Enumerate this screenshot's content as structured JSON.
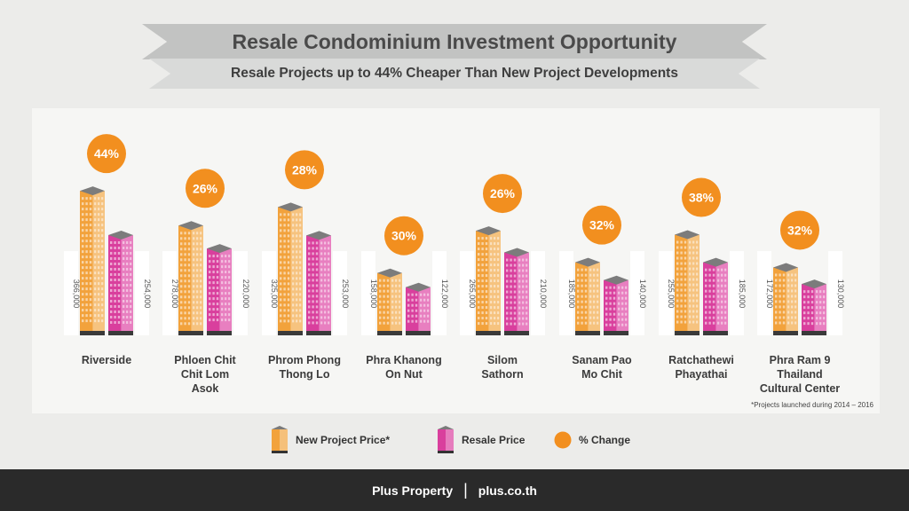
{
  "header": {
    "title": "Resale Condominium Investment Opportunity",
    "subtitle": "Resale Projects up to 44% Cheaper Than New Project Developments"
  },
  "chart_data": {
    "type": "bar",
    "categories": [
      [
        "Riverside"
      ],
      [
        "Phloen Chit",
        "Chit Lom",
        "Asok"
      ],
      [
        "Phrom Phong",
        "Thong Lo"
      ],
      [
        "Phra Khanong",
        "On Nut"
      ],
      [
        "Silom",
        "Sathorn"
      ],
      [
        "Sanam Pao",
        "Mo Chit"
      ],
      [
        "Ratchathewi",
        "Phayathai"
      ],
      [
        "Phra Ram 9",
        "Thailand",
        "Cultural Center"
      ]
    ],
    "series": [
      {
        "name": "New Project Price*",
        "values": [
          366000,
          278000,
          325000,
          158000,
          265000,
          185000,
          255000,
          172000
        ],
        "labels": [
          "366,000",
          "278,000",
          "325,000",
          "158,000",
          "265,000",
          "185,000",
          "255,000",
          "172,000"
        ],
        "color": "#f2a23c"
      },
      {
        "name": "Resale Price",
        "values": [
          254000,
          220000,
          253000,
          122000,
          210000,
          140000,
          185000,
          130000
        ],
        "labels": [
          "254,000",
          "220,000",
          "253,000",
          "122,000",
          "210,000",
          "140,000",
          "185,000",
          "130,000"
        ],
        "color": "#d93f9d"
      }
    ],
    "percent_change": [
      "44%",
      "26%",
      "28%",
      "30%",
      "26%",
      "32%",
      "38%",
      "32%"
    ],
    "percent_color": "#f28f1f",
    "note": "*Projects launched during 2014 – 2016",
    "legend": [
      "New Project Price*",
      "Resale Price",
      "% Change"
    ]
  },
  "footer": {
    "brand": "Plus Property",
    "separator": "|",
    "url": "plus.co.th"
  }
}
